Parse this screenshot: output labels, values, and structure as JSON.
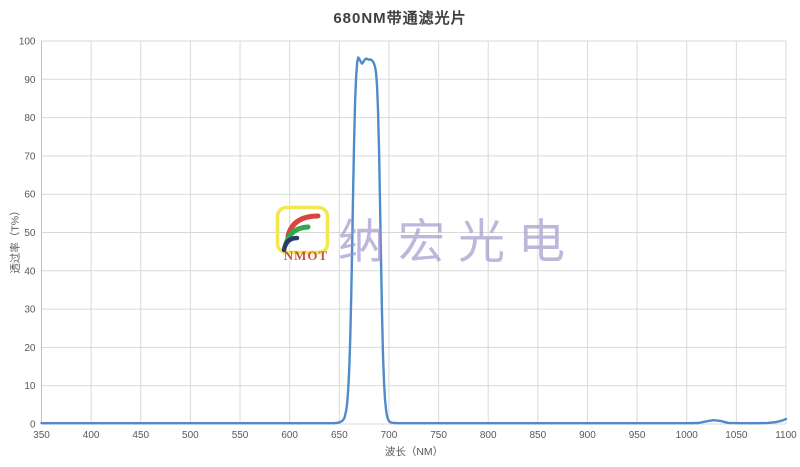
{
  "chart": {
    "title": "680NM带通滤光片",
    "xlabel": "波长（NM）",
    "ylabel": "透过率（T%）"
  },
  "chart_data": {
    "type": "line",
    "title": "680NM带通滤光片",
    "xlabel": "波长（NM）",
    "ylabel": "透过率（T%）",
    "xlim": [
      350,
      1100
    ],
    "ylim": [
      0,
      100
    ],
    "x_ticks": [
      350,
      400,
      450,
      500,
      550,
      600,
      650,
      700,
      750,
      800,
      850,
      900,
      950,
      1000,
      1050,
      1100
    ],
    "y_ticks": [
      0,
      10,
      20,
      30,
      40,
      50,
      60,
      70,
      80,
      90,
      100
    ],
    "grid": true,
    "legend": false,
    "series": [
      {
        "name": "透过率",
        "color": "#4e8bc8",
        "points": [
          [
            350,
            0.2
          ],
          [
            400,
            0.2
          ],
          [
            450,
            0.2
          ],
          [
            500,
            0.2
          ],
          [
            550,
            0.2
          ],
          [
            600,
            0.2
          ],
          [
            630,
            0.2
          ],
          [
            645,
            0.2
          ],
          [
            650,
            0.4
          ],
          [
            653,
            0.8
          ],
          [
            655,
            1.5
          ],
          [
            657,
            3.5
          ],
          [
            658,
            5.5
          ],
          [
            659,
            9
          ],
          [
            660,
            14
          ],
          [
            661,
            22
          ],
          [
            662,
            33
          ],
          [
            663,
            47
          ],
          [
            664,
            62
          ],
          [
            665,
            75
          ],
          [
            666,
            85
          ],
          [
            667,
            91
          ],
          [
            668,
            94.5
          ],
          [
            669,
            95.7
          ],
          [
            670,
            95.4
          ],
          [
            671,
            94.9
          ],
          [
            672,
            94.4
          ],
          [
            673,
            94.1
          ],
          [
            674,
            94.4
          ],
          [
            675,
            94.9
          ],
          [
            676,
            95.2
          ],
          [
            677,
            95.4
          ],
          [
            678,
            95.3
          ],
          [
            679,
            95.2
          ],
          [
            680,
            95.1
          ],
          [
            681,
            95.2
          ],
          [
            682,
            95.1
          ],
          [
            683,
            94.9
          ],
          [
            684,
            94.6
          ],
          [
            685,
            94.1
          ],
          [
            686,
            93.3
          ],
          [
            687,
            91.8
          ],
          [
            688,
            88.5
          ],
          [
            689,
            82
          ],
          [
            690,
            72
          ],
          [
            691,
            58
          ],
          [
            692,
            43
          ],
          [
            693,
            29
          ],
          [
            694,
            18
          ],
          [
            695,
            11
          ],
          [
            696,
            6.5
          ],
          [
            697,
            3.8
          ],
          [
            698,
            2.2
          ],
          [
            699,
            1.3
          ],
          [
            700,
            0.8
          ],
          [
            702,
            0.4
          ],
          [
            705,
            0.25
          ],
          [
            710,
            0.2
          ],
          [
            750,
            0.2
          ],
          [
            800,
            0.2
          ],
          [
            850,
            0.2
          ],
          [
            900,
            0.2
          ],
          [
            950,
            0.2
          ],
          [
            1000,
            0.2
          ],
          [
            1012,
            0.25
          ],
          [
            1020,
            0.7
          ],
          [
            1027,
            1.0
          ],
          [
            1034,
            0.8
          ],
          [
            1042,
            0.3
          ],
          [
            1055,
            0.2
          ],
          [
            1070,
            0.2
          ],
          [
            1082,
            0.3
          ],
          [
            1090,
            0.5
          ],
          [
            1096,
            0.9
          ],
          [
            1100,
            1.3
          ]
        ]
      }
    ]
  },
  "watermark": {
    "text": "纳宏光电",
    "logo_caption": "NMOT",
    "text_color": "#9b91c9",
    "logo": {
      "frame_color": "#f2e84e",
      "arc1_color": "#d9453c",
      "arc2_color": "#2fa84f",
      "arc3_color": "#2c3a66",
      "caption_color": "#c0392b"
    }
  },
  "colors": {
    "grid": "#d9d9d9",
    "axis": "#bfbfbf",
    "tick_label": "#595959",
    "title": "#3f3f3f"
  }
}
